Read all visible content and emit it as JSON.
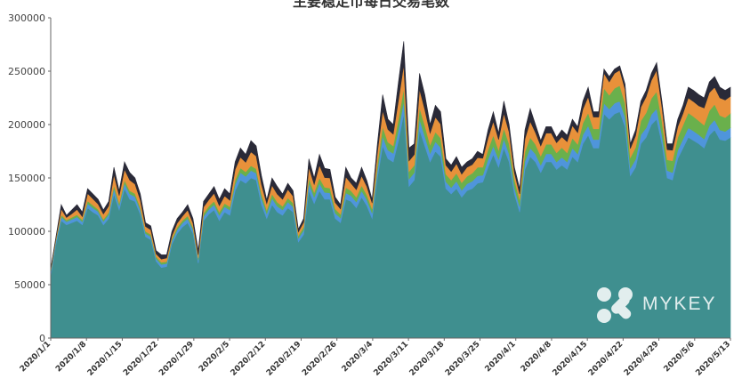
{
  "chart_data": {
    "type": "area",
    "stacked": true,
    "title": "主要稳定币每日交易笔数",
    "xlabel": "",
    "ylabel": "",
    "ylim": [
      0,
      300000
    ],
    "yticks": [
      0,
      50000,
      100000,
      150000,
      200000,
      250000,
      300000
    ],
    "xticks": [
      "2020/1/1",
      "2020/1/8",
      "2020/1/15",
      "2020/1/22",
      "2020/1/29",
      "2020/2/5",
      "2020/2/12",
      "2020/2/19",
      "2020/2/26",
      "2020/3/4",
      "2020/3/11",
      "2020/3/18",
      "2020/3/25",
      "2020/4/1",
      "2020/4/8",
      "2020/4/15",
      "2020/4/22",
      "2020/4/29",
      "2020/5/6",
      "2020/5/13"
    ],
    "grid": false,
    "legend": "none",
    "total": [
      65000,
      95000,
      125000,
      115000,
      120000,
      125000,
      118000,
      140000,
      135000,
      130000,
      120000,
      128000,
      160000,
      138000,
      165000,
      155000,
      150000,
      135000,
      108000,
      105000,
      82000,
      78000,
      78000,
      100000,
      112000,
      118000,
      125000,
      112000,
      82000,
      128000,
      135000,
      142000,
      130000,
      140000,
      135000,
      165000,
      178000,
      172000,
      185000,
      180000,
      152000,
      130000,
      150000,
      142000,
      135000,
      145000,
      138000,
      102000,
      112000,
      168000,
      150000,
      172000,
      160000,
      158000,
      132000,
      125000,
      160000,
      150000,
      145000,
      160000,
      148000,
      130000,
      182000,
      228000,
      205000,
      200000,
      240000,
      278000,
      178000,
      182000,
      248000,
      228000,
      200000,
      218000,
      212000,
      168000,
      162000,
      170000,
      160000,
      165000,
      168000,
      175000,
      172000,
      195000,
      212000,
      192000,
      222000,
      200000,
      160000,
      140000,
      195000,
      215000,
      200000,
      185000,
      198000,
      198000,
      188000,
      195000,
      190000,
      205000,
      198000,
      222000,
      235000,
      212000,
      212000,
      252000,
      245000,
      252000,
      255000,
      238000,
      182000,
      195000,
      222000,
      232000,
      248000,
      258000,
      222000,
      182000,
      182000,
      205000,
      218000,
      235000,
      232000,
      228000,
      225000,
      240000,
      245000,
      235000,
      232000,
      235000
    ],
    "series": [
      {
        "color": "#3f8f8f",
        "values": [
          58000,
          88000,
          110000,
          106000,
          108000,
          110000,
          106000,
          122000,
          118000,
          115000,
          106000,
          112000,
          135000,
          120000,
          140000,
          130000,
          128000,
          116000,
          95000,
          92000,
          72000,
          66000,
          67000,
          88000,
          98000,
          104000,
          108000,
          98000,
          70000,
          110000,
          116000,
          120000,
          110000,
          118000,
          115000,
          138000,
          148000,
          145000,
          150000,
          148000,
          125000,
          112000,
          125000,
          118000,
          115000,
          122000,
          118000,
          90000,
          97000,
          138000,
          126000,
          138000,
          130000,
          130000,
          112000,
          108000,
          130000,
          128000,
          122000,
          132000,
          124000,
          112000,
          150000,
          180000,
          168000,
          165000,
          185000,
          210000,
          142000,
          148000,
          195000,
          180000,
          165000,
          175000,
          170000,
          140000,
          135000,
          140000,
          132000,
          138000,
          140000,
          145000,
          146000,
          160000,
          172000,
          160000,
          178000,
          165000,
          135000,
          118000,
          158000,
          170000,
          165000,
          155000,
          165000,
          165000,
          158000,
          162000,
          158000,
          170000,
          165000,
          182000,
          190000,
          178000,
          178000,
          210000,
          205000,
          210000,
          212000,
          198000,
          152000,
          160000,
          182000,
          188000,
          200000,
          205000,
          182000,
          150000,
          148000,
          168000,
          178000,
          188000,
          185000,
          182000,
          178000,
          190000,
          195000,
          186000,
          185000,
          188000
        ]
      },
      {
        "color": "#4f95db",
        "values": [
          3000,
          3000,
          3500,
          3000,
          3200,
          3500,
          3000,
          4000,
          4000,
          3500,
          3200,
          3500,
          5000,
          4000,
          5000,
          5000,
          4500,
          4000,
          3000,
          3000,
          2500,
          3000,
          2800,
          3000,
          3500,
          3800,
          4000,
          3500,
          3000,
          4000,
          4500,
          5000,
          5000,
          5000,
          5000,
          6000,
          7000,
          6500,
          7000,
          6500,
          6000,
          4500,
          6000,
          5500,
          5000,
          5500,
          5000,
          3500,
          4000,
          7000,
          6000,
          7000,
          6500,
          6000,
          5000,
          4500,
          6000,
          5500,
          5500,
          6000,
          5500,
          5000,
          7000,
          9000,
          8000,
          8000,
          10000,
          12000,
          7000,
          7000,
          10000,
          9000,
          8000,
          9000,
          8500,
          6500,
          6000,
          7000,
          6500,
          6500,
          7000,
          7000,
          6500,
          7500,
          8000,
          7500,
          8500,
          7500,
          6000,
          5000,
          7500,
          8000,
          7500,
          7000,
          7500,
          7500,
          7000,
          7500,
          7000,
          8000,
          7500,
          8500,
          9000,
          8000,
          8000,
          10000,
          9500,
          10000,
          10000,
          9000,
          7000,
          7500,
          8500,
          9000,
          9500,
          10000,
          8500,
          7000,
          7000,
          8000,
          8500,
          9000,
          9000,
          8500,
          8500,
          9000,
          9500,
          9000,
          8500,
          9000
        ]
      },
      {
        "color": "#6ab04c",
        "values": [
          1500,
          1500,
          2000,
          1500,
          1800,
          2000,
          1800,
          2500,
          2500,
          2000,
          2000,
          2200,
          3000,
          2500,
          3000,
          3000,
          2800,
          2500,
          2000,
          2000,
          1800,
          2000,
          1800,
          2000,
          2200,
          2400,
          2500,
          2200,
          2000,
          2800,
          3000,
          3200,
          3000,
          3200,
          3000,
          4000,
          4500,
          4200,
          4500,
          4000,
          4000,
          3500,
          4000,
          3800,
          3500,
          3800,
          3500,
          2500,
          3000,
          5000,
          4500,
          5000,
          4800,
          4500,
          4000,
          3500,
          5000,
          4500,
          4500,
          5000,
          4500,
          4000,
          6000,
          9000,
          7500,
          7000,
          10000,
          12000,
          7000,
          7000,
          11000,
          10000,
          8000,
          9000,
          9000,
          7000,
          7000,
          7500,
          7000,
          7000,
          7500,
          8000,
          7500,
          9000,
          10000,
          8500,
          10000,
          9500,
          7500,
          6500,
          9000,
          10000,
          9000,
          8500,
          9000,
          9000,
          8500,
          9000,
          8500,
          9500,
          9000,
          11000,
          12000,
          10000,
          10000,
          14000,
          13000,
          14000,
          14500,
          13000,
          10000,
          11000,
          13000,
          14000,
          15000,
          16000,
          13000,
          10000,
          11000,
          12000,
          13000,
          14000,
          13500,
          13000,
          13000,
          14000,
          14500,
          13500,
          13000,
          13500
        ]
      },
      {
        "color": "#e8913a",
        "values": [
          1500,
          1500,
          5500,
          2500,
          3500,
          5000,
          3000,
          7000,
          6000,
          5000,
          5000,
          6000,
          10000,
          7000,
          10000,
          10000,
          9000,
          7000,
          4500,
          4500,
          2700,
          3000,
          3400,
          3000,
          4000,
          4000,
          5500,
          4000,
          3000,
          6000,
          6000,
          7500,
          6000,
          7000,
          6000,
          10000,
          10000,
          9000,
          13000,
          12000,
          9000,
          6000,
          8000,
          7500,
          6500,
          8000,
          6500,
          3500,
          4500,
          10000,
          7500,
          12000,
          9000,
          9500,
          6000,
          5000,
          10000,
          7000,
          7000,
          9000,
          8000,
          5500,
          11000,
          15000,
          12000,
          11000,
          18000,
          22000,
          10000,
          10000,
          17000,
          15000,
          11000,
          14000,
          13000,
          8500,
          8000,
          9000,
          8000,
          8500,
          8000,
          9000,
          8500,
          11000,
          13000,
          10000,
          14000,
          11000,
          6500,
          5500,
          12000,
          15000,
          11000,
          9500,
          10500,
          10500,
          9500,
          10000,
          10500,
          11500,
          11000,
          13000,
          15000,
          11000,
          11000,
          14000,
          12500,
          14000,
          14500,
          13000,
          8500,
          11000,
          13000,
          15000,
          17000,
          20000,
          13000,
          9500,
          10000,
          10000,
          11000,
          14000,
          14000,
          14000,
          16000,
          17000,
          16000,
          16500,
          16500,
          16000
        ]
      },
      {
        "color": "#2a2a38",
        "values": [
          1000,
          1000,
          4000,
          2000,
          3500,
          4500,
          4200,
          4500,
          4500,
          4500,
          3800,
          4300,
          7000,
          4500,
          7000,
          7000,
          5700,
          5500,
          3500,
          3500,
          3000,
          4000,
          3000,
          4000,
          4300,
          3800,
          5000,
          4300,
          4000,
          5200,
          5500,
          6300,
          6000,
          6800,
          6000,
          7000,
          8500,
          7300,
          10500,
          9500,
          8000,
          3500,
          7000,
          7200,
          5000,
          5700,
          5000,
          2500,
          3500,
          8000,
          6000,
          10000,
          8700,
          8000,
          5000,
          4000,
          9000,
          5000,
          6000,
          8000,
          5500,
          3500,
          8000,
          15000,
          9500,
          9000,
          17000,
          22000,
          12000,
          10000,
          15000,
          14000,
          8000,
          11000,
          11500,
          6000,
          6000,
          6500,
          6500,
          5000,
          5500,
          6000,
          3500,
          7500,
          9000,
          6000,
          11500,
          7000,
          5000,
          5000,
          8500,
          12000,
          7500,
          5000,
          6000,
          6000,
          5000,
          6500,
          6000,
          6000,
          5500,
          7500,
          9000,
          5000,
          5000,
          4000,
          5000,
          4000,
          4000,
          5000,
          4500,
          5500,
          5500,
          6000,
          6500,
          7000,
          5500,
          5500,
          6000,
          7000,
          7500,
          10000,
          10500,
          10500,
          9500,
          10000,
          10000,
          10000,
          9000,
          8500
        ]
      }
    ]
  },
  "watermark": {
    "text": "MYKEY",
    "logo_icon": "mykey-x-logo-icon"
  }
}
